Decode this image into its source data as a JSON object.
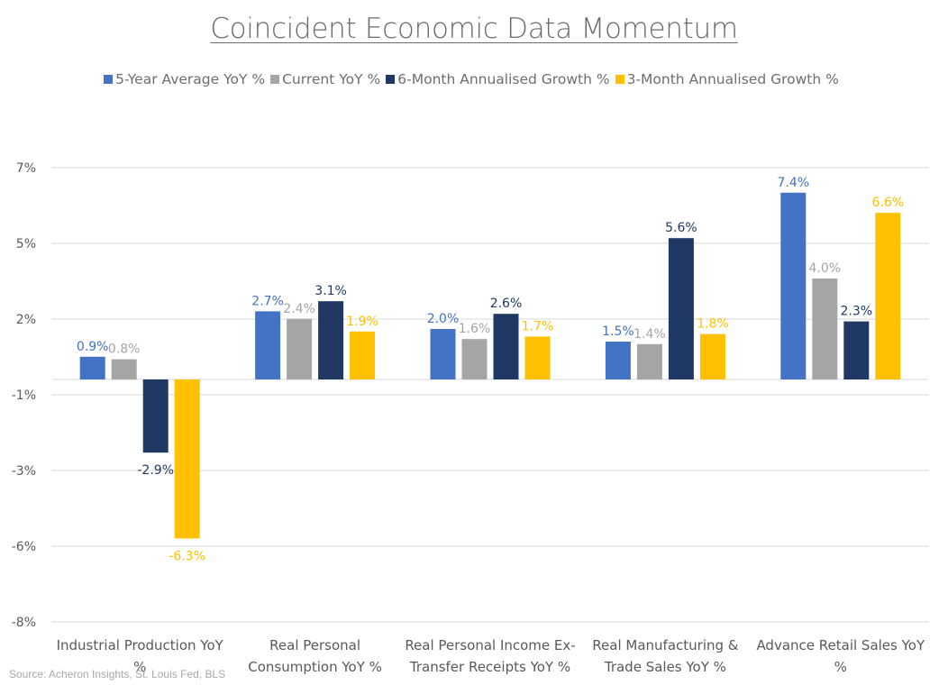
{
  "chart_data": {
    "type": "bar",
    "title": "Coincident Economic Data Momentum",
    "categories": [
      [
        "Industrial Production YoY",
        "%"
      ],
      [
        "Real Personal",
        "Consumption YoY %"
      ],
      [
        "Real Personal Income Ex-",
        "Transfer Receipts YoY %"
      ],
      [
        "Real Manufacturing &",
        "Trade Sales YoY %"
      ],
      [
        "Advance Retail Sales YoY",
        "%"
      ]
    ],
    "series": [
      {
        "name": "5-Year Average YoY %",
        "color": "#4472C4",
        "values": [
          0.9,
          2.7,
          2.0,
          1.5,
          7.4
        ],
        "labels": [
          "0.9%",
          "2.7%",
          "2.0%",
          "1.5%",
          "7.4%"
        ]
      },
      {
        "name": "Current YoY %",
        "color": "#A5A5A5",
        "values": [
          0.8,
          2.4,
          1.6,
          1.4,
          4.0
        ],
        "labels": [
          "0.8%",
          "2.4%",
          "1.6%",
          "1.4%",
          "4.0%"
        ]
      },
      {
        "name": "6-Month Annualised Growth %",
        "color": "#1F3864",
        "values": [
          -2.9,
          3.1,
          2.6,
          5.6,
          2.3
        ],
        "labels": [
          "-2.9%",
          "3.1%",
          "2.6%",
          "5.6%",
          "2.3%"
        ]
      },
      {
        "name": "3-Month Annualised Growth %",
        "color": "#FFC000",
        "values": [
          -6.3,
          1.9,
          1.7,
          1.8,
          6.6
        ],
        "labels": [
          "-6.3%",
          "1.9%",
          "1.7%",
          "1.8%",
          "6.6%"
        ]
      }
    ],
    "y_ticks": [
      "7%",
      "5%",
      "2%",
      "-1%",
      "-3%",
      "-6%",
      "-8%"
    ],
    "ylim": [
      -8,
      7.5
    ],
    "grid": true,
    "legend": "top",
    "label_colors": [
      "#4472C4",
      "#A5A5A5",
      "#1F3864",
      "#FFC000"
    ]
  },
  "source": "Source: Acheron Insights, St. Louis Fed, BLS"
}
